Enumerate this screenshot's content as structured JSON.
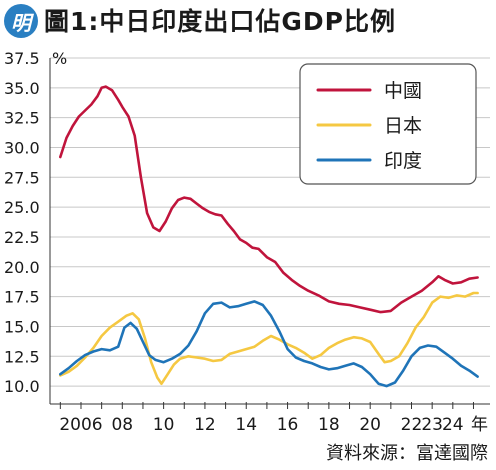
{
  "header": {
    "logo_text": "明",
    "title": "圖1:中日印度出口佔GDP比例"
  },
  "source": "資料來源：富達國際",
  "colors": {
    "china": "#c0143c",
    "japan": "#f5c842",
    "india": "#1f74b8",
    "grid": "#c8c8c8",
    "axis": "#333333"
  },
  "chart_data": {
    "type": "line",
    "title": "圖1:中日印度出口佔GDP比例",
    "xlabel": "年",
    "ylabel": "%",
    "ylim": [
      8.5,
      37.5
    ],
    "xlim": [
      2004.5,
      2025.8
    ],
    "y_ticks": [
      "10.0",
      "12.5",
      "15.0",
      "17.5",
      "20.0",
      "22.5",
      "25.0",
      "27.5",
      "30.0",
      "32.5",
      "35.0",
      "37.5"
    ],
    "y_unit_label": "%",
    "x_ticks": [
      {
        "value": 2006,
        "label": "2006"
      },
      {
        "value": 2008,
        "label": "08"
      },
      {
        "value": 2010,
        "label": "10"
      },
      {
        "value": 2012,
        "label": "12"
      },
      {
        "value": 2014,
        "label": "14"
      },
      {
        "value": 2016,
        "label": "16"
      },
      {
        "value": 2018,
        "label": "18"
      },
      {
        "value": 2020,
        "label": "20"
      },
      {
        "value": 2022,
        "label": "22"
      },
      {
        "value": 2023,
        "label": "23"
      },
      {
        "value": 2024,
        "label": "24"
      }
    ],
    "x_unit_label": "年",
    "grid": true,
    "legend_position": "top-right",
    "series": [
      {
        "name": "中國",
        "color_key": "china",
        "points": [
          [
            2005.0,
            29.2
          ],
          [
            2005.3,
            30.8
          ],
          [
            2005.6,
            31.8
          ],
          [
            2005.9,
            32.6
          ],
          [
            2006.2,
            33.1
          ],
          [
            2006.5,
            33.6
          ],
          [
            2006.8,
            34.3
          ],
          [
            2007.0,
            35.0
          ],
          [
            2007.2,
            35.1
          ],
          [
            2007.5,
            34.8
          ],
          [
            2007.8,
            34.0
          ],
          [
            2008.0,
            33.4
          ],
          [
            2008.3,
            32.6
          ],
          [
            2008.6,
            31.0
          ],
          [
            2008.9,
            27.5
          ],
          [
            2009.2,
            24.5
          ],
          [
            2009.5,
            23.3
          ],
          [
            2009.8,
            23.0
          ],
          [
            2010.1,
            23.8
          ],
          [
            2010.4,
            24.9
          ],
          [
            2010.7,
            25.6
          ],
          [
            2011.0,
            25.8
          ],
          [
            2011.3,
            25.7
          ],
          [
            2011.6,
            25.3
          ],
          [
            2011.9,
            24.9
          ],
          [
            2012.2,
            24.6
          ],
          [
            2012.5,
            24.4
          ],
          [
            2012.8,
            24.3
          ],
          [
            2013.1,
            23.6
          ],
          [
            2013.4,
            23.0
          ],
          [
            2013.7,
            22.3
          ],
          [
            2014.0,
            22.0
          ],
          [
            2014.3,
            21.6
          ],
          [
            2014.6,
            21.5
          ],
          [
            2015.0,
            20.8
          ],
          [
            2015.4,
            20.4
          ],
          [
            2015.8,
            19.5
          ],
          [
            2016.2,
            18.9
          ],
          [
            2016.6,
            18.4
          ],
          [
            2017.0,
            18.0
          ],
          [
            2017.5,
            17.6
          ],
          [
            2018.0,
            17.1
          ],
          [
            2018.5,
            16.9
          ],
          [
            2019.0,
            16.8
          ],
          [
            2019.5,
            16.6
          ],
          [
            2020.0,
            16.4
          ],
          [
            2020.5,
            16.2
          ],
          [
            2021.0,
            16.3
          ],
          [
            2021.5,
            17.0
          ],
          [
            2022.0,
            17.5
          ],
          [
            2022.5,
            18.0
          ],
          [
            2023.0,
            18.7
          ],
          [
            2023.3,
            19.2
          ],
          [
            2023.6,
            18.9
          ],
          [
            2024.0,
            18.6
          ],
          [
            2024.4,
            18.7
          ],
          [
            2024.8,
            19.0
          ],
          [
            2025.2,
            19.1
          ]
        ]
      },
      {
        "name": "日本",
        "color_key": "japan",
        "points": [
          [
            2005.0,
            10.9
          ],
          [
            2005.4,
            11.2
          ],
          [
            2005.8,
            11.7
          ],
          [
            2006.2,
            12.4
          ],
          [
            2006.6,
            13.2
          ],
          [
            2007.0,
            14.2
          ],
          [
            2007.4,
            14.9
          ],
          [
            2007.8,
            15.4
          ],
          [
            2008.2,
            15.9
          ],
          [
            2008.5,
            16.1
          ],
          [
            2008.8,
            15.6
          ],
          [
            2009.1,
            14.0
          ],
          [
            2009.4,
            12.0
          ],
          [
            2009.7,
            10.7
          ],
          [
            2009.9,
            10.2
          ],
          [
            2010.2,
            11.0
          ],
          [
            2010.5,
            11.8
          ],
          [
            2010.8,
            12.3
          ],
          [
            2011.2,
            12.5
          ],
          [
            2011.6,
            12.4
          ],
          [
            2012.0,
            12.3
          ],
          [
            2012.4,
            12.1
          ],
          [
            2012.8,
            12.2
          ],
          [
            2013.2,
            12.7
          ],
          [
            2013.6,
            12.9
          ],
          [
            2014.0,
            13.1
          ],
          [
            2014.4,
            13.3
          ],
          [
            2014.8,
            13.8
          ],
          [
            2015.2,
            14.2
          ],
          [
            2015.6,
            13.9
          ],
          [
            2016.0,
            13.5
          ],
          [
            2016.4,
            13.2
          ],
          [
            2016.8,
            12.8
          ],
          [
            2017.2,
            12.3
          ],
          [
            2017.6,
            12.6
          ],
          [
            2018.0,
            13.2
          ],
          [
            2018.4,
            13.6
          ],
          [
            2018.8,
            13.9
          ],
          [
            2019.2,
            14.1
          ],
          [
            2019.6,
            14.0
          ],
          [
            2020.0,
            13.7
          ],
          [
            2020.4,
            12.7
          ],
          [
            2020.7,
            12.0
          ],
          [
            2021.0,
            12.1
          ],
          [
            2021.4,
            12.5
          ],
          [
            2021.8,
            13.6
          ],
          [
            2022.2,
            14.9
          ],
          [
            2022.6,
            15.8
          ],
          [
            2023.0,
            17.0
          ],
          [
            2023.4,
            17.5
          ],
          [
            2023.8,
            17.4
          ],
          [
            2024.2,
            17.6
          ],
          [
            2024.6,
            17.5
          ],
          [
            2025.0,
            17.8
          ],
          [
            2025.2,
            17.8
          ]
        ]
      },
      {
        "name": "印度",
        "color_key": "india",
        "points": [
          [
            2005.0,
            11.0
          ],
          [
            2005.4,
            11.5
          ],
          [
            2005.8,
            12.1
          ],
          [
            2006.2,
            12.6
          ],
          [
            2006.6,
            12.9
          ],
          [
            2007.0,
            13.1
          ],
          [
            2007.4,
            13.0
          ],
          [
            2007.8,
            13.3
          ],
          [
            2008.1,
            14.9
          ],
          [
            2008.4,
            15.3
          ],
          [
            2008.7,
            14.8
          ],
          [
            2009.0,
            13.7
          ],
          [
            2009.3,
            12.6
          ],
          [
            2009.6,
            12.2
          ],
          [
            2010.0,
            12.0
          ],
          [
            2010.4,
            12.3
          ],
          [
            2010.8,
            12.7
          ],
          [
            2011.2,
            13.4
          ],
          [
            2011.6,
            14.6
          ],
          [
            2012.0,
            16.1
          ],
          [
            2012.4,
            16.9
          ],
          [
            2012.8,
            17.0
          ],
          [
            2013.2,
            16.6
          ],
          [
            2013.6,
            16.7
          ],
          [
            2014.0,
            16.9
          ],
          [
            2014.4,
            17.1
          ],
          [
            2014.8,
            16.8
          ],
          [
            2015.2,
            15.9
          ],
          [
            2015.6,
            14.6
          ],
          [
            2016.0,
            13.1
          ],
          [
            2016.4,
            12.4
          ],
          [
            2016.8,
            12.1
          ],
          [
            2017.2,
            11.9
          ],
          [
            2017.6,
            11.6
          ],
          [
            2018.0,
            11.4
          ],
          [
            2018.4,
            11.5
          ],
          [
            2018.8,
            11.7
          ],
          [
            2019.2,
            11.9
          ],
          [
            2019.6,
            11.6
          ],
          [
            2020.0,
            11.0
          ],
          [
            2020.4,
            10.2
          ],
          [
            2020.8,
            10.0
          ],
          [
            2021.2,
            10.3
          ],
          [
            2021.6,
            11.3
          ],
          [
            2022.0,
            12.5
          ],
          [
            2022.4,
            13.2
          ],
          [
            2022.8,
            13.4
          ],
          [
            2023.2,
            13.3
          ],
          [
            2023.6,
            12.8
          ],
          [
            2024.0,
            12.3
          ],
          [
            2024.4,
            11.7
          ],
          [
            2024.8,
            11.3
          ],
          [
            2025.2,
            10.8
          ]
        ]
      }
    ]
  }
}
